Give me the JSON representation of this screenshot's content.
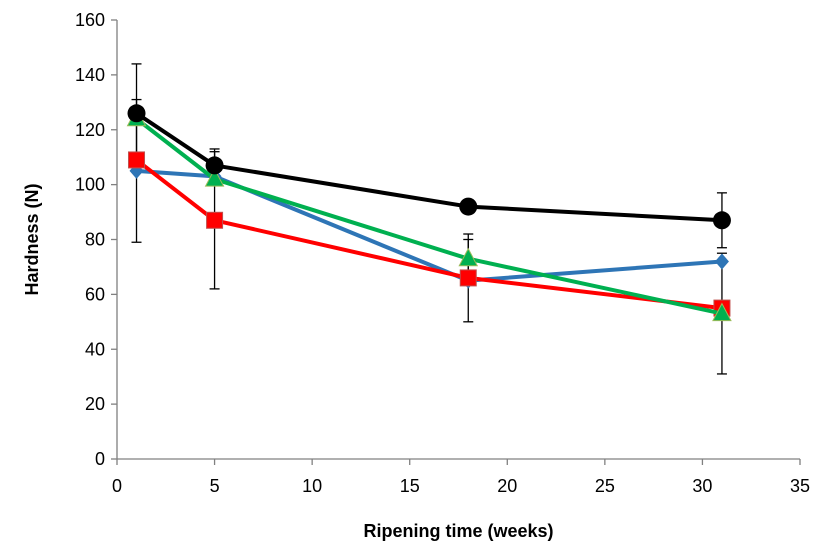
{
  "chart_data": {
    "type": "line",
    "title": "",
    "xlabel": "Ripening time (weeks)",
    "ylabel": "Hardness (N)",
    "xlim": [
      0,
      35
    ],
    "ylim": [
      0,
      160
    ],
    "xticks": [
      0,
      5,
      10,
      15,
      20,
      25,
      30,
      35
    ],
    "yticks": [
      0,
      20,
      40,
      60,
      80,
      100,
      120,
      140,
      160
    ],
    "grid": false,
    "legend": "none",
    "series": [
      {
        "color": "#2E75B6",
        "marker": "diamond",
        "points": [
          {
            "x": 1,
            "y": 105,
            "err": 0
          },
          {
            "x": 5,
            "y": 103,
            "err": 0
          },
          {
            "x": 18,
            "y": 65,
            "err": 0
          },
          {
            "x": 31,
            "y": 72,
            "err": 0
          }
        ]
      },
      {
        "color": "#FF0000",
        "marker": "square",
        "points": [
          {
            "x": 1,
            "y": 109,
            "err": 0
          },
          {
            "x": 5,
            "y": 87,
            "err": 25
          },
          {
            "x": 18,
            "y": 66,
            "err": 0
          },
          {
            "x": 31,
            "y": 55,
            "err": 0
          }
        ]
      },
      {
        "color": "#00B050",
        "marker": "triangle",
        "points": [
          {
            "x": 1,
            "y": 124,
            "err": 0
          },
          {
            "x": 5,
            "y": 102,
            "err": 0
          },
          {
            "x": 18,
            "y": 73,
            "err": 9
          },
          {
            "x": 31,
            "y": 53,
            "err": 0
          }
        ]
      },
      {
        "color": "#000000",
        "marker": "circle",
        "points": [
          {
            "x": 1,
            "y": 126,
            "err": 18
          },
          {
            "x": 5,
            "y": 107,
            "err": 6
          },
          {
            "x": 18,
            "y": 92,
            "err": 0
          },
          {
            "x": 31,
            "y": 87,
            "err": 10
          }
        ]
      }
    ],
    "extra_error_bars": [
      {
        "x": 1,
        "y": 105,
        "err": 26
      },
      {
        "x": 18,
        "y": 65,
        "err": 15
      },
      {
        "x": 31,
        "y": 53,
        "err": 22
      }
    ]
  }
}
